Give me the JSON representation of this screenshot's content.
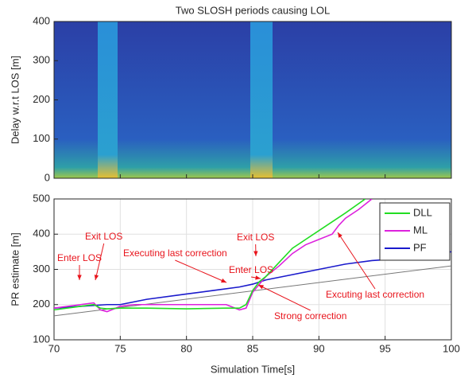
{
  "chart_data": [
    {
      "type": "heatmap",
      "title": "Two SLOSH periods causing LOL",
      "ylabel": "Delay w.r.t LOS [m]",
      "xlim": [
        70,
        100
      ],
      "xticks": [
        70,
        75,
        80,
        85,
        90,
        95,
        100
      ],
      "ylim": [
        0,
        400
      ],
      "yticks": [
        0,
        100,
        200,
        300,
        400
      ]
    },
    {
      "type": "line",
      "xlabel": "Simulation Time[s]",
      "ylabel": "PR estimate [m]",
      "xlim": [
        70,
        100
      ],
      "xticks": [
        70,
        75,
        80,
        85,
        90,
        95,
        100
      ],
      "ylim": [
        100,
        500
      ],
      "yticks": [
        100,
        200,
        300,
        400,
        500
      ],
      "grid": true,
      "legend": "upper right",
      "series": [
        {
          "name": "DLL",
          "color": "#22dd22",
          "x": [
            70,
            72,
            73,
            73.5,
            74,
            75,
            77,
            80,
            83,
            84,
            84.5,
            85,
            85.5,
            86,
            87,
            88,
            90,
            92,
            93.5
          ],
          "values": [
            185,
            195,
            200,
            190,
            188,
            190,
            190,
            188,
            190,
            190,
            200,
            240,
            265,
            280,
            320,
            360,
            410,
            460,
            500
          ]
        },
        {
          "name": "ML",
          "color": "#dd22dd",
          "x": [
            70,
            72,
            73,
            73.5,
            74,
            75,
            76,
            80,
            83,
            84,
            84.5,
            85,
            86,
            87,
            88,
            89,
            90,
            91,
            91.5,
            92,
            93,
            94
          ],
          "values": [
            190,
            200,
            205,
            185,
            180,
            195,
            200,
            200,
            200,
            185,
            190,
            235,
            280,
            310,
            345,
            370,
            385,
            400,
            425,
            445,
            470,
            500
          ]
        },
        {
          "name": "PF",
          "color": "#1a1acc",
          "x": [
            70,
            72,
            74,
            75,
            77,
            80,
            82,
            84,
            85,
            86,
            88,
            90,
            92,
            94,
            96,
            98,
            100
          ],
          "values": [
            190,
            195,
            200,
            200,
            215,
            230,
            240,
            250,
            258,
            270,
            285,
            300,
            315,
            325,
            330,
            340,
            350
          ]
        },
        {
          "color": "#777777",
          "x": [
            70,
            100
          ],
          "values": [
            168,
            310
          ]
        }
      ],
      "annotations": [
        "Enter LOS",
        "Exit LOS",
        "Executing last correction",
        "Enter LOS",
        "Exit LOS",
        "Strong correction",
        "Excuting last correction"
      ]
    }
  ]
}
